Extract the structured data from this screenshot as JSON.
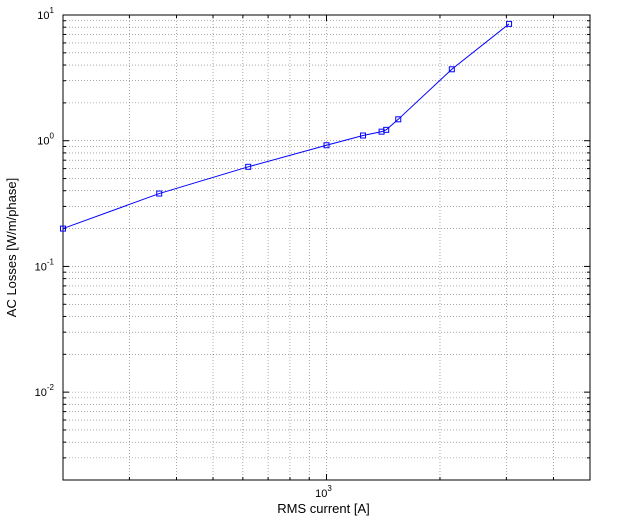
{
  "chart_data": {
    "type": "line",
    "title": "",
    "xlabel": "RMS current [A]",
    "ylabel": "AC Losses [W/m/phase]",
    "xscale": "log",
    "yscale": "log",
    "xlim": [
      200,
      5000
    ],
    "ylim": [
      0.002,
      10
    ],
    "grid": true,
    "legend": "none",
    "x_tick_labels": [
      {
        "value": 1000,
        "base": "10",
        "exp": "3"
      }
    ],
    "y_tick_labels": [
      {
        "value": 0.01,
        "base": "10",
        "exp": "-2"
      },
      {
        "value": 0.1,
        "base": "10",
        "exp": "-1"
      },
      {
        "value": 1,
        "base": "10",
        "exp": "0"
      },
      {
        "value": 10,
        "base": "10",
        "exp": "1"
      }
    ],
    "series": [
      {
        "color": "#0000ff",
        "marker": "square",
        "x": [
          200,
          360,
          620,
          1000,
          1250,
          1400,
          1440,
          1550,
          2150,
          3050
        ],
        "y": [
          0.2,
          0.38,
          0.62,
          0.92,
          1.1,
          1.18,
          1.22,
          1.48,
          3.7,
          8.5
        ]
      }
    ]
  }
}
